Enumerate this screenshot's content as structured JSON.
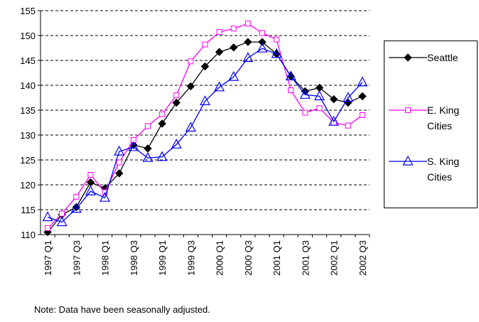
{
  "chart_data": {
    "type": "line",
    "note": "Note: Data have been seasonally adjusted.",
    "categories": [
      "1997 Q1",
      null,
      "1997 Q3",
      null,
      "1998 Q1",
      null,
      "1998 Q3",
      null,
      "1999 Q1",
      null,
      "1999 Q3",
      null,
      "2000 Q1",
      null,
      "2000 Q3",
      null,
      "2001 Q1",
      null,
      "2001 Q3",
      null,
      "2002 Q1",
      null,
      "2002 Q3"
    ],
    "ylim": [
      110,
      155
    ],
    "yticks": [
      110,
      115,
      120,
      125,
      130,
      135,
      140,
      145,
      150,
      155
    ],
    "grid": true,
    "series": [
      {
        "name": "Seattle",
        "color": "#000000",
        "marker": "diamond",
        "values": [
          110.5,
          114,
          115.5,
          120.5,
          119.3,
          122.3,
          128,
          127.3,
          132.3,
          136.5,
          139.8,
          143.8,
          146.7,
          147.6,
          148.7,
          148.7,
          146.3,
          141.8,
          138.8,
          139.5,
          137.2,
          136.5,
          137.8
        ]
      },
      {
        "name": "E. King Cities",
        "color": "#ff00ff",
        "marker": "square",
        "values": [
          111.3,
          114.2,
          117.6,
          122,
          118.5,
          124.5,
          129,
          131.8,
          134.2,
          138,
          144.8,
          148.2,
          150.7,
          151.4,
          152.4,
          150.5,
          149.2,
          139,
          134.5,
          135.4,
          132.5,
          131.9,
          134
        ]
      },
      {
        "name": "S. King Cities",
        "color": "#0000ff",
        "marker": "triangle",
        "values": [
          113.5,
          112.5,
          115.2,
          118.7,
          117.4,
          126.7,
          127.6,
          125.4,
          125.6,
          128.1,
          131.5,
          136.8,
          139.6,
          141.7,
          145.5,
          147.4,
          146.3,
          141.8,
          138.1,
          137.8,
          132.7,
          137.5,
          140.6
        ]
      }
    ]
  }
}
